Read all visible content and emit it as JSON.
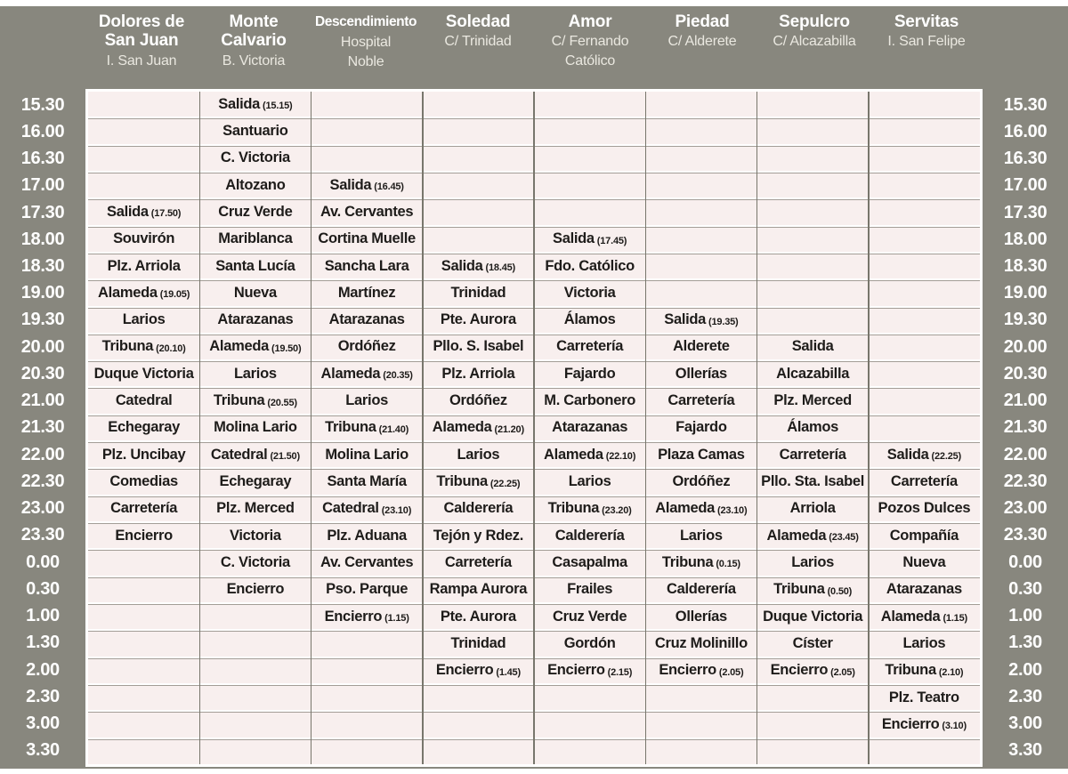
{
  "palette": {
    "header_gray": "#88877e",
    "cell_pink": "#f8efee",
    "text_dark": "#1e1c1a",
    "grid_line": "#78766c",
    "row_line": "#a39d96",
    "header_text": "#ffffff",
    "subtitle_text": "#eae8e0"
  },
  "columns": [
    {
      "title_lines": [
        "Dolores de",
        "San Juan"
      ],
      "subtitle_lines": [
        "I. San Juan"
      ]
    },
    {
      "title_lines": [
        "Monte",
        "Calvario"
      ],
      "subtitle_lines": [
        "B. Victoria"
      ]
    },
    {
      "title_lines": [
        "Descendimiento"
      ],
      "subtitle_lines": [
        "Hospital",
        "Noble"
      ]
    },
    {
      "title_lines": [
        "Soledad"
      ],
      "subtitle_lines": [
        "C/ Trinidad"
      ]
    },
    {
      "title_lines": [
        "Amor"
      ],
      "subtitle_lines": [
        "C/ Fernando",
        "Católico"
      ]
    },
    {
      "title_lines": [
        "Piedad"
      ],
      "subtitle_lines": [
        "C/ Alderete"
      ]
    },
    {
      "title_lines": [
        "Sepulcro"
      ],
      "subtitle_lines": [
        "C/ Alcazabilla"
      ]
    },
    {
      "title_lines": [
        "Servitas"
      ],
      "subtitle_lines": [
        "I. San Felipe"
      ]
    }
  ],
  "rows": [
    {
      "time": "15.30",
      "cells": [
        [
          "",
          ""
        ],
        [
          "Salida",
          "(15.15)"
        ],
        [
          "",
          ""
        ],
        [
          "",
          ""
        ],
        [
          "",
          ""
        ],
        [
          "",
          ""
        ],
        [
          "",
          ""
        ],
        [
          "",
          ""
        ]
      ]
    },
    {
      "time": "16.00",
      "cells": [
        [
          "",
          ""
        ],
        [
          "Santuario",
          ""
        ],
        [
          "",
          ""
        ],
        [
          "",
          ""
        ],
        [
          "",
          ""
        ],
        [
          "",
          ""
        ],
        [
          "",
          ""
        ],
        [
          "",
          ""
        ]
      ]
    },
    {
      "time": "16.30",
      "cells": [
        [
          "",
          ""
        ],
        [
          "C. Victoria",
          ""
        ],
        [
          "",
          ""
        ],
        [
          "",
          ""
        ],
        [
          "",
          ""
        ],
        [
          "",
          ""
        ],
        [
          "",
          ""
        ],
        [
          "",
          ""
        ]
      ]
    },
    {
      "time": "17.00",
      "cells": [
        [
          "",
          ""
        ],
        [
          "Altozano",
          ""
        ],
        [
          "Salida",
          "(16.45)"
        ],
        [
          "",
          ""
        ],
        [
          "",
          ""
        ],
        [
          "",
          ""
        ],
        [
          "",
          ""
        ],
        [
          "",
          ""
        ]
      ]
    },
    {
      "time": "17.30",
      "cells": [
        [
          "Salida",
          "(17.50)"
        ],
        [
          "Cruz Verde",
          ""
        ],
        [
          "Av. Cervantes",
          ""
        ],
        [
          "",
          ""
        ],
        [
          "",
          ""
        ],
        [
          "",
          ""
        ],
        [
          "",
          ""
        ],
        [
          "",
          ""
        ]
      ]
    },
    {
      "time": "18.00",
      "cells": [
        [
          "Souvirón",
          ""
        ],
        [
          "Mariblanca",
          ""
        ],
        [
          "Cortina Muelle",
          ""
        ],
        [
          "",
          ""
        ],
        [
          "Salida",
          "(17.45)"
        ],
        [
          "",
          ""
        ],
        [
          "",
          ""
        ],
        [
          "",
          ""
        ]
      ]
    },
    {
      "time": "18.30",
      "cells": [
        [
          "Plz. Arriola",
          ""
        ],
        [
          "Santa Lucía",
          ""
        ],
        [
          "Sancha Lara",
          ""
        ],
        [
          "Salida",
          "(18.45)"
        ],
        [
          "Fdo. Católico",
          ""
        ],
        [
          "",
          ""
        ],
        [
          "",
          ""
        ],
        [
          "",
          ""
        ]
      ]
    },
    {
      "time": "19.00",
      "cells": [
        [
          "Alameda",
          "(19.05)"
        ],
        [
          "Nueva",
          ""
        ],
        [
          "Martínez",
          ""
        ],
        [
          "Trinidad",
          ""
        ],
        [
          "Victoria",
          ""
        ],
        [
          "",
          ""
        ],
        [
          "",
          ""
        ],
        [
          "",
          ""
        ]
      ]
    },
    {
      "time": "19.30",
      "cells": [
        [
          "Larios",
          ""
        ],
        [
          "Atarazanas",
          ""
        ],
        [
          "Atarazanas",
          ""
        ],
        [
          "Pte. Aurora",
          ""
        ],
        [
          "Álamos",
          ""
        ],
        [
          "Salida",
          "(19.35)"
        ],
        [
          "",
          ""
        ],
        [
          "",
          ""
        ]
      ]
    },
    {
      "time": "20.00",
      "cells": [
        [
          "Tribuna",
          "(20.10)"
        ],
        [
          "Alameda",
          "(19.50)"
        ],
        [
          "Ordóñez",
          ""
        ],
        [
          "Pllo. S. Isabel",
          ""
        ],
        [
          "Carretería",
          ""
        ],
        [
          "Alderete",
          ""
        ],
        [
          "Salida",
          ""
        ],
        [
          "",
          ""
        ]
      ]
    },
    {
      "time": "20.30",
      "cells": [
        [
          "Duque Victoria",
          ""
        ],
        [
          "Larios",
          ""
        ],
        [
          "Alameda",
          "(20.35)"
        ],
        [
          "Plz. Arriola",
          ""
        ],
        [
          "Fajardo",
          ""
        ],
        [
          "Ollerías",
          ""
        ],
        [
          "Alcazabilla",
          ""
        ],
        [
          "",
          ""
        ]
      ]
    },
    {
      "time": "21.00",
      "cells": [
        [
          "Catedral",
          ""
        ],
        [
          "Tribuna",
          "(20.55)"
        ],
        [
          "Larios",
          ""
        ],
        [
          "Ordóñez",
          ""
        ],
        [
          "M. Carbonero",
          ""
        ],
        [
          "Carretería",
          ""
        ],
        [
          "Plz. Merced",
          ""
        ],
        [
          "",
          ""
        ]
      ]
    },
    {
      "time": "21.30",
      "cells": [
        [
          "Echegaray",
          ""
        ],
        [
          "Molina Lario",
          ""
        ],
        [
          "Tribuna",
          "(21.40)"
        ],
        [
          "Alameda",
          "(21.20)"
        ],
        [
          "Atarazanas",
          ""
        ],
        [
          "Fajardo",
          ""
        ],
        [
          "Álamos",
          ""
        ],
        [
          "",
          ""
        ]
      ]
    },
    {
      "time": "22.00",
      "cells": [
        [
          "Plz. Uncibay",
          ""
        ],
        [
          "Catedral",
          "(21.50)"
        ],
        [
          "Molina Lario",
          ""
        ],
        [
          "Larios",
          ""
        ],
        [
          "Alameda",
          "(22.10)"
        ],
        [
          "Plaza Camas",
          ""
        ],
        [
          "Carretería",
          ""
        ],
        [
          "Salida",
          "(22.25)"
        ]
      ]
    },
    {
      "time": "22.30",
      "cells": [
        [
          "Comedias",
          ""
        ],
        [
          "Echegaray",
          ""
        ],
        [
          "Santa María",
          ""
        ],
        [
          "Tribuna",
          "(22.25)"
        ],
        [
          "Larios",
          ""
        ],
        [
          "Ordóñez",
          ""
        ],
        [
          "Pllo. Sta. Isabel",
          ""
        ],
        [
          "Carretería",
          ""
        ]
      ]
    },
    {
      "time": "23.00",
      "cells": [
        [
          "Carretería",
          ""
        ],
        [
          "Plz. Merced",
          ""
        ],
        [
          "Catedral",
          "(23.10)"
        ],
        [
          "Calderería",
          ""
        ],
        [
          "Tribuna",
          "(23.20)"
        ],
        [
          "Alameda",
          "(23.10)"
        ],
        [
          "Arriola",
          ""
        ],
        [
          "Pozos Dulces",
          ""
        ]
      ]
    },
    {
      "time": "23.30",
      "cells": [
        [
          "Encierro",
          ""
        ],
        [
          "Victoria",
          ""
        ],
        [
          "Plz. Aduana",
          ""
        ],
        [
          "Tejón y Rdez.",
          ""
        ],
        [
          "Calderería",
          ""
        ],
        [
          "Larios",
          ""
        ],
        [
          "Alameda",
          "(23.45)"
        ],
        [
          "Compañía",
          ""
        ]
      ]
    },
    {
      "time": "0.00",
      "cells": [
        [
          "",
          ""
        ],
        [
          "C. Victoria",
          ""
        ],
        [
          "Av. Cervantes",
          ""
        ],
        [
          "Carretería",
          ""
        ],
        [
          "Casapalma",
          ""
        ],
        [
          "Tribuna",
          "(0.15)"
        ],
        [
          "Larios",
          ""
        ],
        [
          "Nueva",
          ""
        ]
      ]
    },
    {
      "time": "0.30",
      "cells": [
        [
          "",
          ""
        ],
        [
          "Encierro",
          ""
        ],
        [
          "Pso. Parque",
          ""
        ],
        [
          "Rampa Aurora",
          ""
        ],
        [
          "Frailes",
          ""
        ],
        [
          "Calderería",
          ""
        ],
        [
          "Tribuna",
          "(0.50)"
        ],
        [
          "Atarazanas",
          ""
        ]
      ]
    },
    {
      "time": "1.00",
      "cells": [
        [
          "",
          ""
        ],
        [
          "",
          ""
        ],
        [
          "Encierro",
          "(1.15)"
        ],
        [
          "Pte. Aurora",
          ""
        ],
        [
          "Cruz Verde",
          ""
        ],
        [
          "Ollerías",
          ""
        ],
        [
          "Duque Victoria",
          ""
        ],
        [
          "Alameda",
          "(1.15)"
        ]
      ]
    },
    {
      "time": "1.30",
      "cells": [
        [
          "",
          ""
        ],
        [
          "",
          ""
        ],
        [
          "",
          ""
        ],
        [
          "Trinidad",
          ""
        ],
        [
          "Gordón",
          ""
        ],
        [
          "Cruz Molinillo",
          ""
        ],
        [
          "Císter",
          ""
        ],
        [
          "Larios",
          ""
        ]
      ]
    },
    {
      "time": "2.00",
      "cells": [
        [
          "",
          ""
        ],
        [
          "",
          ""
        ],
        [
          "",
          ""
        ],
        [
          "Encierro",
          "(1.45)"
        ],
        [
          "Encierro",
          "(2.15)"
        ],
        [
          "Encierro",
          "(2.05)"
        ],
        [
          "Encierro",
          "(2.05)"
        ],
        [
          "Tribuna",
          "(2.10)"
        ]
      ]
    },
    {
      "time": "2.30",
      "cells": [
        [
          "",
          ""
        ],
        [
          "",
          ""
        ],
        [
          "",
          ""
        ],
        [
          "",
          ""
        ],
        [
          "",
          ""
        ],
        [
          "",
          ""
        ],
        [
          "",
          ""
        ],
        [
          "Plz. Teatro",
          ""
        ]
      ]
    },
    {
      "time": "3.00",
      "cells": [
        [
          "",
          ""
        ],
        [
          "",
          ""
        ],
        [
          "",
          ""
        ],
        [
          "",
          ""
        ],
        [
          "",
          ""
        ],
        [
          "",
          ""
        ],
        [
          "",
          ""
        ],
        [
          "Encierro",
          "(3.10)"
        ]
      ]
    },
    {
      "time": "3.30",
      "cells": [
        [
          "",
          ""
        ],
        [
          "",
          ""
        ],
        [
          "",
          ""
        ],
        [
          "",
          ""
        ],
        [
          "",
          ""
        ],
        [
          "",
          ""
        ],
        [
          "",
          ""
        ],
        [
          "",
          ""
        ]
      ]
    }
  ]
}
